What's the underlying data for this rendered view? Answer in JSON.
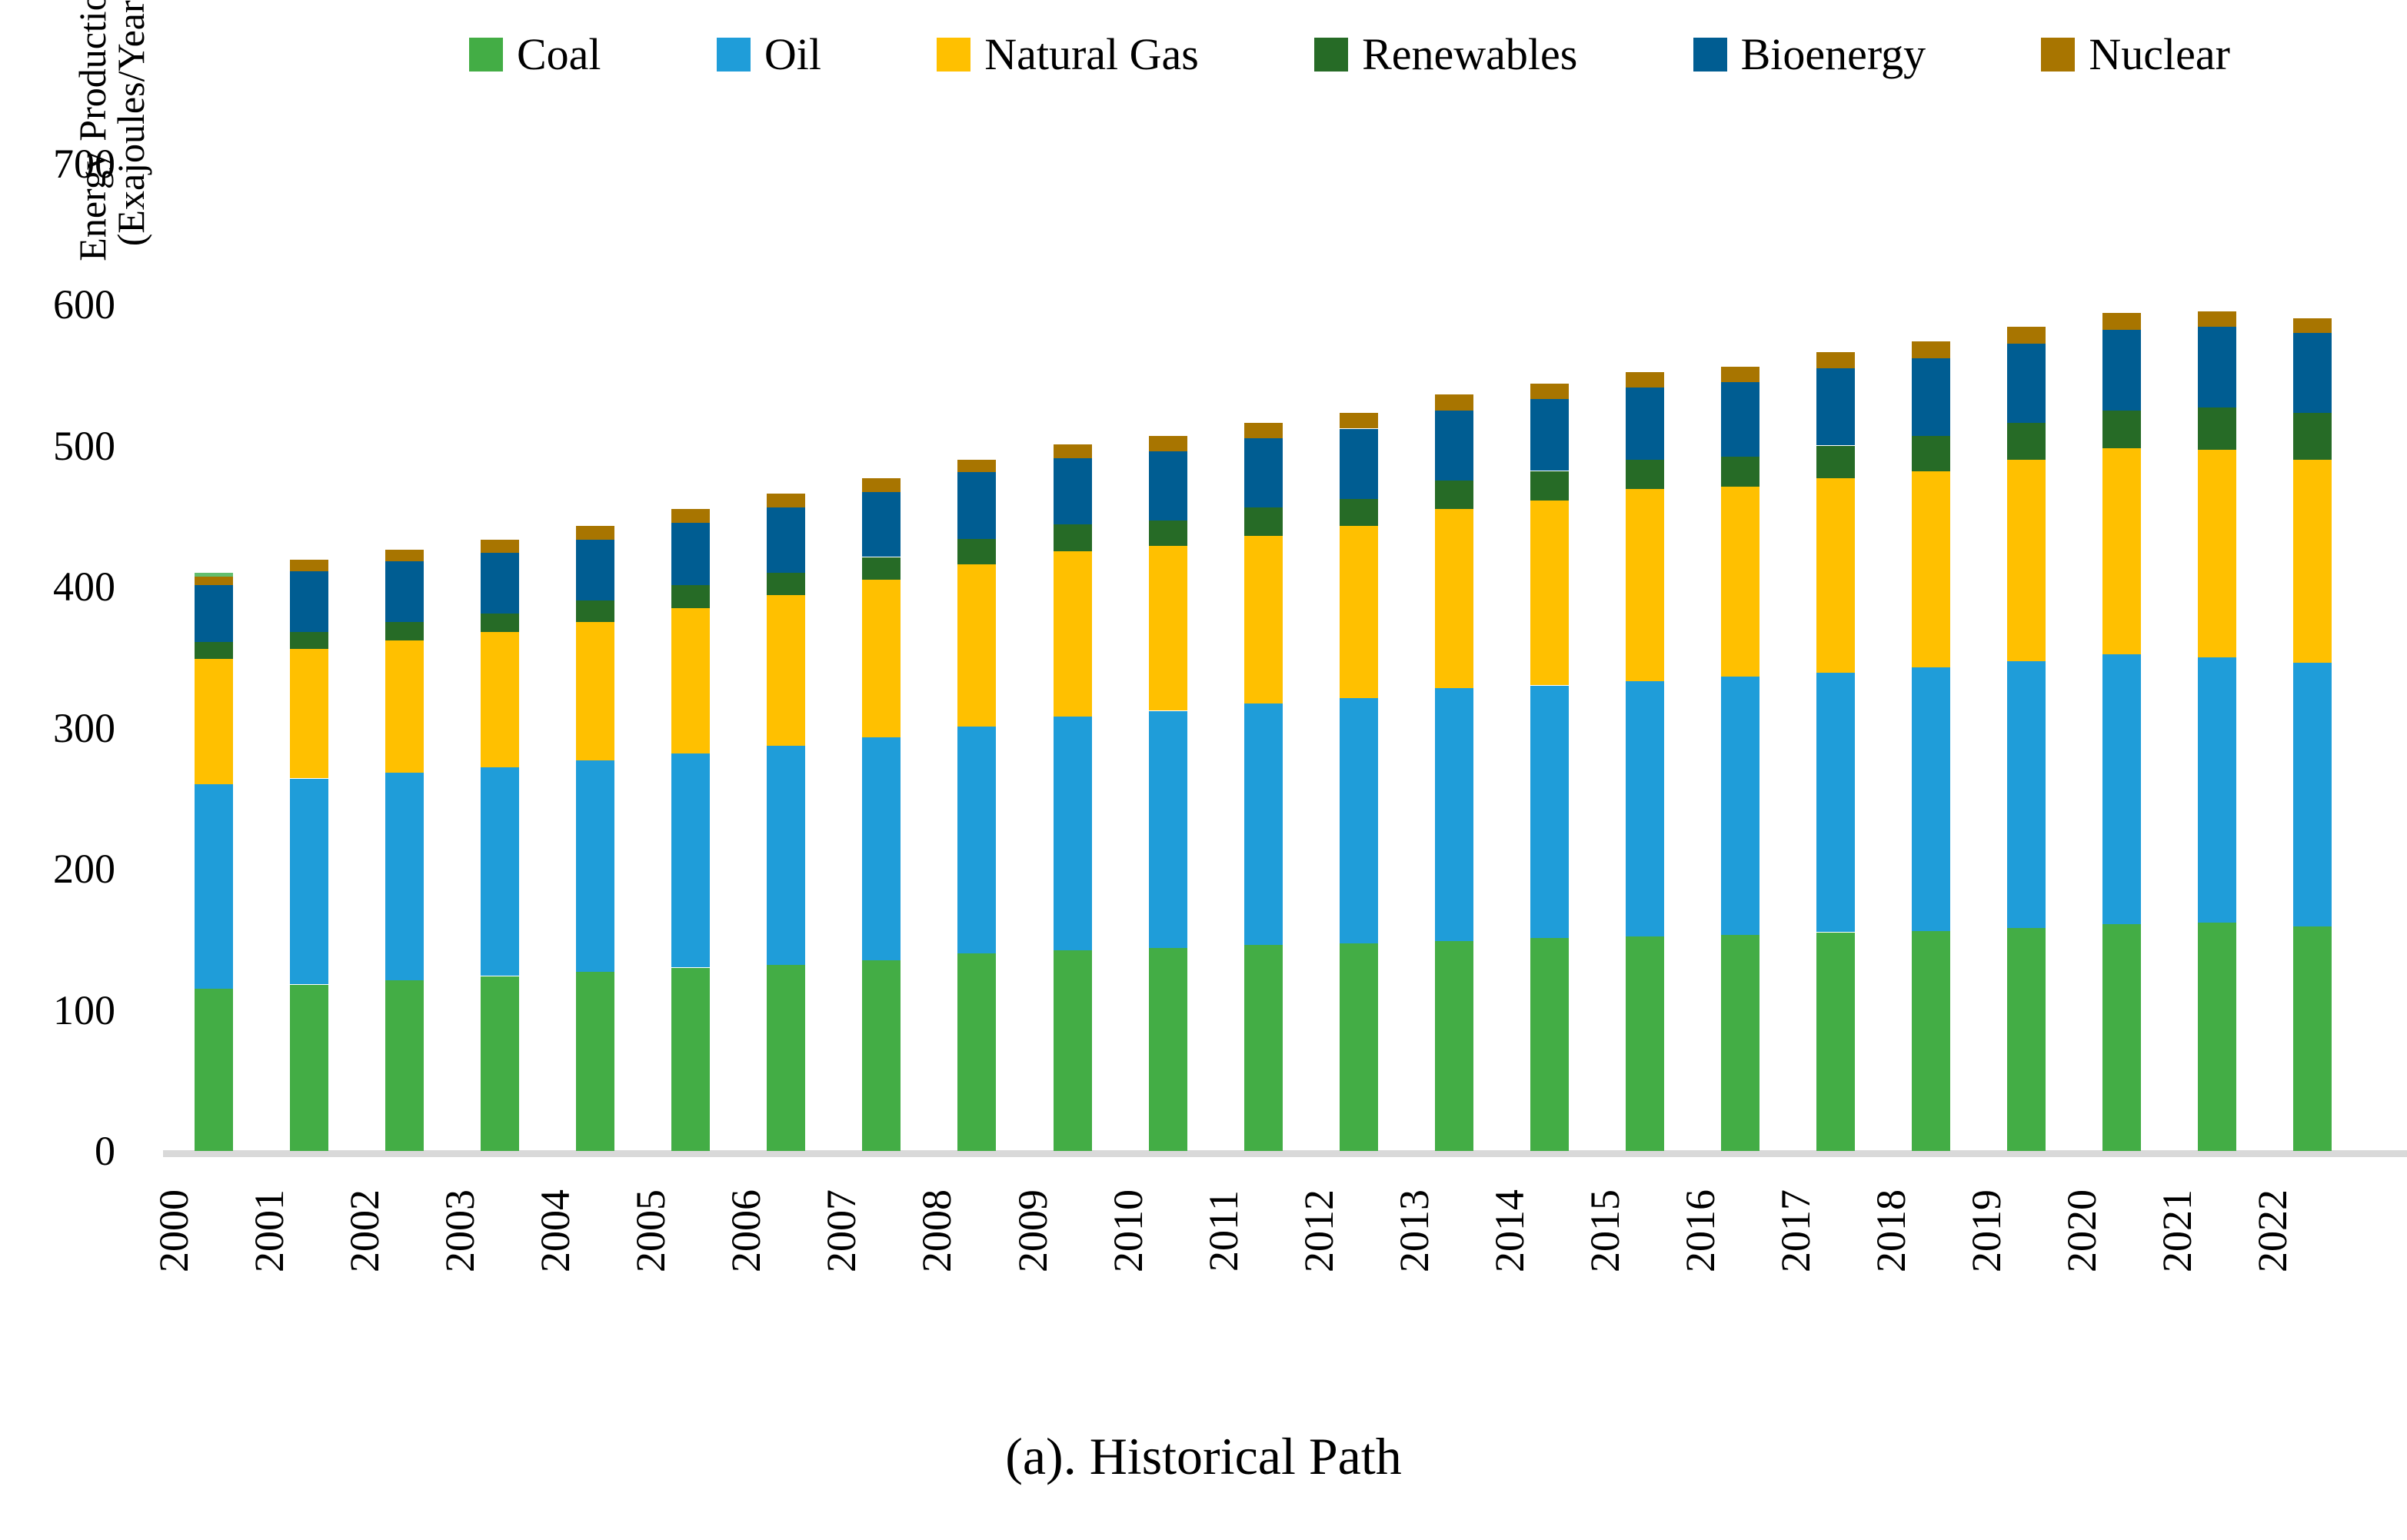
{
  "figure": {
    "caption": "(a). Historical Path"
  },
  "y_axis": {
    "title_line1": "Energy Production",
    "title_line2": "(Exajoules/Year)",
    "ticks": [
      0,
      100,
      200,
      300,
      400,
      500,
      600,
      700
    ]
  },
  "colors": {
    "coal": "#43AD45",
    "oil": "#1F9DD9",
    "natural_gas": "#FFC000",
    "renewables": "#266B26",
    "bioenergy": "#005D92",
    "nuclear": "#A87500",
    "cap_artifact": "#62BE6E",
    "axis_line": "#D9D9D9",
    "text": "#000000"
  },
  "chart_data": {
    "type": "bar",
    "stacked": true,
    "title": "",
    "xlabel": "",
    "ylabel": "Energy Production (Exajoules/Year)",
    "ylim": [
      0,
      700
    ],
    "grid": false,
    "legend_position": "top",
    "caption": "(a). Historical Path",
    "y_ticks": [
      0,
      100,
      200,
      300,
      400,
      500,
      600,
      700
    ],
    "years": [
      2000,
      2001,
      2002,
      2003,
      2004,
      2005,
      2006,
      2007,
      2008,
      2009,
      2010,
      2011,
      2012,
      2013,
      2014,
      2015,
      2016,
      2017,
      2018,
      2019,
      2020,
      2021,
      2022
    ],
    "series": [
      {
        "name": "Coal",
        "color": "#43AD45",
        "values": [
          115,
          118,
          121,
          124,
          127,
          130,
          132,
          135,
          140,
          142,
          144,
          146,
          147,
          149,
          151,
          152,
          153,
          155,
          156,
          158,
          161,
          162,
          159
        ]
      },
      {
        "name": "Oil",
        "color": "#1F9DD9",
        "values": [
          145,
          146,
          147,
          148,
          150,
          152,
          155,
          158,
          161,
          166,
          168,
          171,
          174,
          179,
          179,
          181,
          183,
          184,
          187,
          189,
          191,
          188,
          187
        ]
      },
      {
        "name": "Natural Gas",
        "color": "#FFC000",
        "values": [
          89,
          92,
          94,
          96,
          98,
          103,
          107,
          112,
          115,
          117,
          117,
          119,
          122,
          127,
          131,
          136,
          135,
          138,
          139,
          143,
          146,
          147,
          144
        ]
      },
      {
        "name": "Renewables",
        "color": "#266B26",
        "values": [
          12,
          12,
          13,
          13,
          15,
          16,
          16,
          16,
          18,
          19,
          18,
          20,
          19,
          20,
          21,
          21,
          21,
          23,
          25,
          26,
          27,
          30,
          33
        ]
      },
      {
        "name": "Bioenergy",
        "color": "#005D92",
        "values": [
          40,
          43,
          43,
          43,
          43,
          44,
          46,
          46,
          47,
          47,
          49,
          49,
          50,
          50,
          51,
          51,
          53,
          55,
          55,
          56,
          57,
          57,
          57
        ]
      },
      {
        "name": "Nuclear",
        "color": "#A87500",
        "values": [
          6,
          8,
          8,
          9,
          10,
          10,
          10,
          10,
          9,
          10,
          11,
          11,
          11,
          11,
          11,
          11,
          11,
          11,
          12,
          12,
          12,
          11,
          10
        ]
      }
    ],
    "totals": [
      407,
      419,
      426,
      433,
      443,
      455,
      466,
      477,
      490,
      501,
      507,
      516,
      523,
      536,
      544,
      552,
      556,
      566,
      574,
      584,
      594,
      595,
      590
    ],
    "artifact_cap_2000": {
      "year": 2000,
      "value": 3,
      "color": "#62BE6E"
    }
  }
}
